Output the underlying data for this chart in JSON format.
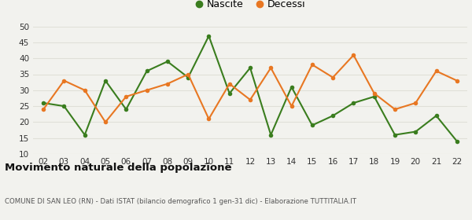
{
  "years": [
    "02",
    "03",
    "04",
    "05",
    "06",
    "07",
    "08",
    "09",
    "10",
    "11",
    "12",
    "13",
    "14",
    "15",
    "16",
    "17",
    "18",
    "19",
    "20",
    "21",
    "22"
  ],
  "nascite": [
    26,
    25,
    16,
    33,
    24,
    36,
    39,
    34,
    47,
    29,
    37,
    16,
    31,
    19,
    22,
    26,
    28,
    16,
    17,
    22,
    14
  ],
  "decessi": [
    24,
    33,
    30,
    20,
    28,
    30,
    32,
    35,
    21,
    32,
    27,
    37,
    25,
    38,
    34,
    41,
    29,
    24,
    26,
    36,
    33
  ],
  "nascite_color": "#3a7d1e",
  "decessi_color": "#e87722",
  "bg_color": "#f2f2ee",
  "grid_color": "#e0e0d8",
  "ylim": [
    10,
    50
  ],
  "yticks": [
    10,
    15,
    20,
    25,
    30,
    35,
    40,
    45,
    50
  ],
  "title": "Movimento naturale della popolazione",
  "subtitle": "COMUNE DI SAN LEO (RN) - Dati ISTAT (bilancio demografico 1 gen-31 dic) - Elaborazione TUTTITALIA.IT",
  "legend_nascite": "Nascite",
  "legend_decessi": "Decessi",
  "marker_size": 4,
  "linewidth": 1.5
}
